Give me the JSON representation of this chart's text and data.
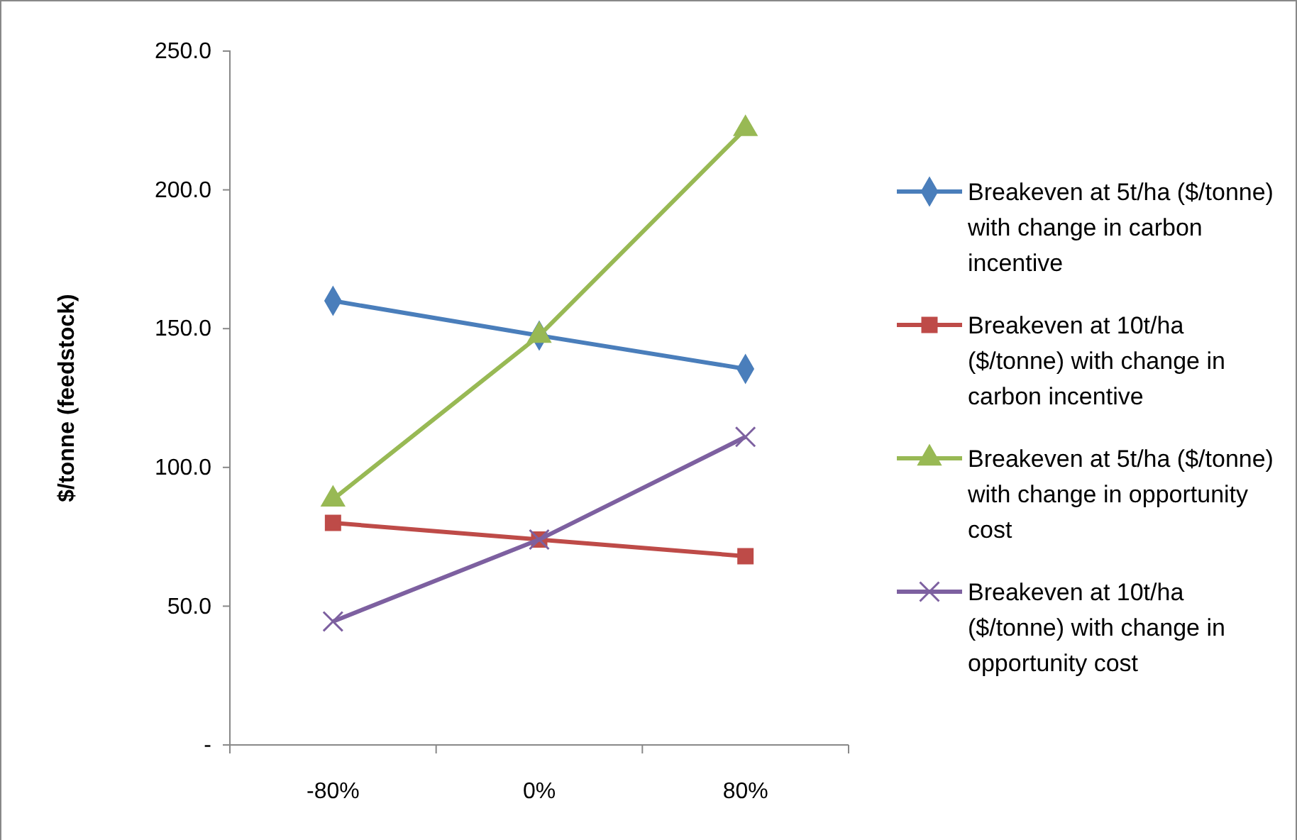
{
  "chart_data": {
    "type": "line",
    "ylabel": "$/tonne (feedstock)",
    "categories": [
      "-80%",
      "0%",
      "80%"
    ],
    "series": [
      {
        "name": "Breakeven at 5t/ha ($/tonne) with change in carbon incentive",
        "color": "#4a7ebb",
        "marker": "diamond",
        "values": [
          160,
          147.5,
          135.5
        ]
      },
      {
        "name": "Breakeven at 10t/ha ($/tonne) with change in carbon incentive",
        "color": "#be4b48",
        "marker": "square",
        "values": [
          80,
          74,
          68
        ]
      },
      {
        "name": "Breakeven at 5t/ha ($/tonne) with change in opportunity cost",
        "color": "#98b954",
        "marker": "triangle",
        "values": [
          88.5,
          147.5,
          222
        ]
      },
      {
        "name": "Breakeven at 10t/ha ($/tonne) with change in opportunity cost",
        "color": "#7d60a0",
        "marker": "cross",
        "values": [
          44.5,
          74,
          111
        ]
      }
    ],
    "ylim": [
      0,
      250
    ],
    "yticks": [
      {
        "value": 0,
        "label": "-"
      },
      {
        "value": 50,
        "label": "50.0"
      },
      {
        "value": 100,
        "label": "100.0"
      },
      {
        "value": 150,
        "label": "150.0"
      },
      {
        "value": 200,
        "label": "200.0"
      },
      {
        "value": 250,
        "label": "250.0"
      }
    ],
    "grid": false,
    "legend": "right",
    "line_style": "solid"
  }
}
